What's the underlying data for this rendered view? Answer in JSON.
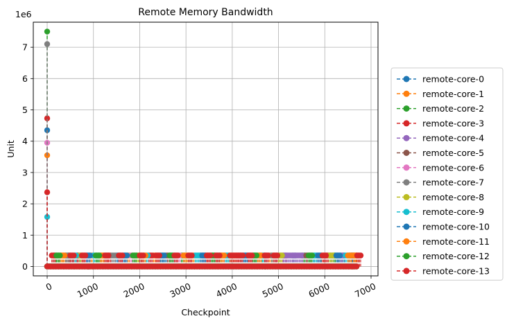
{
  "chart_data": {
    "type": "line",
    "title": "Remote Memory Bandwidth",
    "xlabel": "Checkpoint",
    "ylabel": "Unit",
    "y_multiplier_label": "1e6",
    "xlim": [
      -300,
      7150
    ],
    "ylim": [
      -300000,
      7800000
    ],
    "xticks": [
      0,
      1000,
      2000,
      3000,
      4000,
      5000,
      6000,
      7000
    ],
    "xtick_labels": [
      "0",
      "1000",
      "2000",
      "3000",
      "4000",
      "5000",
      "6000",
      "7000"
    ],
    "yticks": [
      0,
      1000000,
      2000000,
      3000000,
      4000000,
      5000000,
      6000000,
      7000000
    ],
    "ytick_labels": [
      "0",
      "1",
      "2",
      "3",
      "4",
      "5",
      "6",
      "7"
    ],
    "grid": true,
    "legend_position": "right-outside",
    "x_range": [
      0,
      6700
    ],
    "baseline_value": 0,
    "burst_value": 350000,
    "series": [
      {
        "name": "remote-core-0",
        "color": "#1f77b4",
        "peak": 4350000,
        "bursts": [
          450,
          650,
          1500,
          2500,
          3300,
          4200,
          5300,
          6100,
          6350,
          6500
        ]
      },
      {
        "name": "remote-core-1",
        "color": "#ff7f0e",
        "peak": 3550000,
        "bursts": [
          250,
          900,
          1700,
          2300,
          3100,
          4000,
          4800,
          5900,
          6550,
          6650
        ]
      },
      {
        "name": "remote-core-2",
        "color": "#2ca02c",
        "peak": 7500000,
        "bursts": [
          150,
          1100,
          1950,
          2900,
          3700,
          4600,
          5500,
          6200
        ]
      },
      {
        "name": "remote-core-3",
        "color": "#d62728",
        "peak": 4730000,
        "bursts": [
          100,
          600,
          1300,
          2200,
          3400,
          4300,
          5100,
          6000,
          6600
        ]
      },
      {
        "name": "remote-core-4",
        "color": "#9467bd",
        "peak": 0,
        "bursts": [
          1600,
          2700,
          4950,
          5050,
          5150,
          5250,
          5350,
          5450,
          6300
        ]
      },
      {
        "name": "remote-core-5",
        "color": "#8c564b",
        "peak": 0,
        "bursts": [
          400,
          1200,
          2600,
          3600,
          4400,
          5600
        ]
      },
      {
        "name": "remote-core-6",
        "color": "#e377c2",
        "peak": 3950000,
        "bursts": [
          800,
          1800,
          2800,
          3800,
          4700,
          5800
        ]
      },
      {
        "name": "remote-core-7",
        "color": "#7f7f7f",
        "peak": 7100000,
        "bursts": [
          350,
          1400,
          2400,
          3500,
          4500,
          4850,
          5700
        ]
      },
      {
        "name": "remote-core-8",
        "color": "#bcbd22",
        "peak": 0,
        "bursts": [
          700,
          1900,
          3000,
          3900,
          5000,
          6100
        ]
      },
      {
        "name": "remote-core-9",
        "color": "#17becf",
        "peak": 1580000,
        "bursts": [
          550,
          1000,
          2100,
          3200,
          3850,
          4650,
          5750,
          6450
        ]
      },
      {
        "name": "remote-core-10",
        "color": "#1f77b4",
        "peak": 0,
        "bursts": [
          850,
          1650,
          2450,
          3350,
          4250,
          5850,
          6250,
          6550
        ]
      },
      {
        "name": "remote-core-11",
        "color": "#ff7f0e",
        "peak": 0,
        "bursts": [
          300,
          1150,
          2050,
          2950,
          3750,
          4550,
          6500,
          6620
        ]
      },
      {
        "name": "remote-core-12",
        "color": "#2ca02c",
        "peak": 0,
        "bursts": [
          200,
          1050,
          1850,
          2650,
          3550,
          4450,
          5650
        ]
      },
      {
        "name": "remote-core-13",
        "color": "#d62728",
        "peak": 2370000,
        "bursts": [
          500,
          750,
          1250,
          1550,
          2000,
          2350,
          2750,
          3050,
          3450,
          3650,
          3950,
          4050,
          4100,
          4150,
          4350,
          4700,
          4900,
          5950,
          6700
        ]
      }
    ]
  }
}
